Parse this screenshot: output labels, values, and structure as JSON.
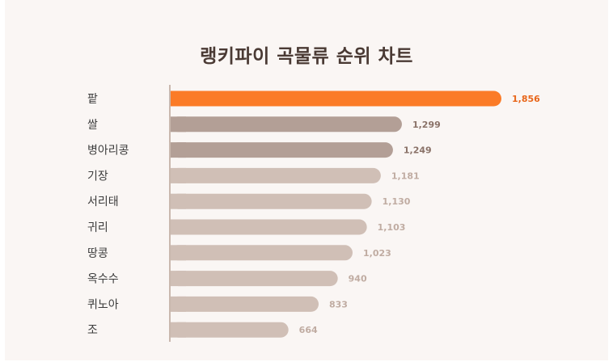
{
  "chart_data": {
    "type": "bar",
    "orientation": "horizontal",
    "title": "랭키파이 곡물류 순위 차트",
    "categories": [
      "팥",
      "쌀",
      "병아리콩",
      "기장",
      "서리태",
      "귀리",
      "땅콩",
      "옥수수",
      "퀴노아",
      "조"
    ],
    "values": [
      1856,
      1299,
      1249,
      1181,
      1130,
      1103,
      1023,
      940,
      833,
      664
    ],
    "value_labels": [
      "1,856",
      "1,299",
      "1,249",
      "1,181",
      "1,130",
      "1,103",
      "1,023",
      "940",
      "833",
      "664"
    ],
    "xlim": [
      0,
      1856
    ],
    "grid": false,
    "legend": "none",
    "colors": {
      "top": "#fb7b27",
      "second_tier": "#b39f96",
      "rest": "#d0bfb6",
      "top_label": "#e8661a",
      "second_label": "#8a7268",
      "rest_label": "#c0aca2",
      "axis": "#c9b8ae"
    }
  }
}
